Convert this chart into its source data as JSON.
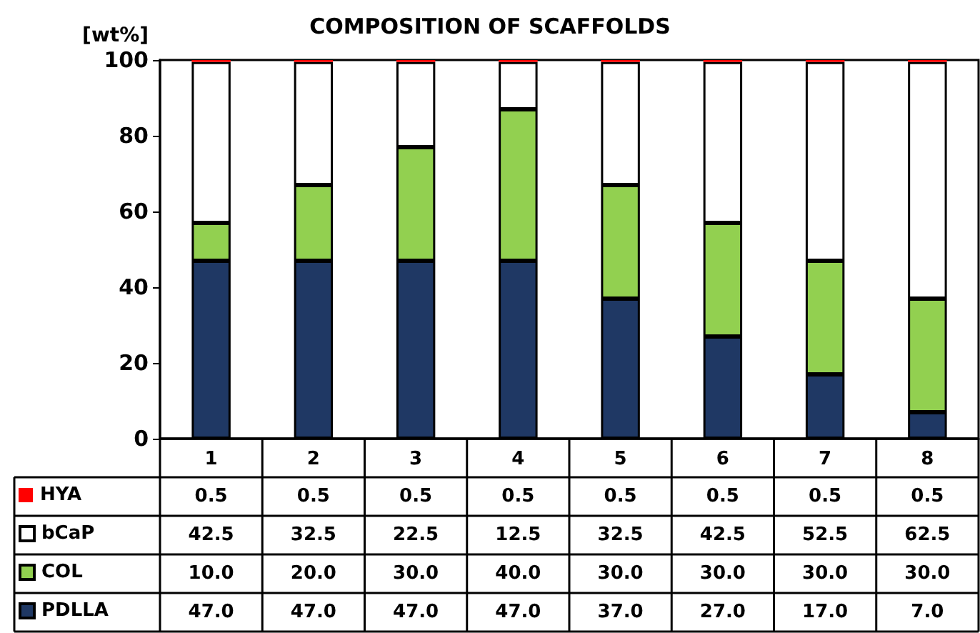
{
  "chart_data": {
    "type": "bar",
    "title": "COMPOSITION OF SCAFFOLDS",
    "ylabel": "[wt%]",
    "categories": [
      "1",
      "2",
      "3",
      "4",
      "5",
      "6",
      "7",
      "8"
    ],
    "stacked": true,
    "ylim": [
      0,
      100
    ],
    "yticks": [
      0,
      20,
      40,
      60,
      80,
      100
    ],
    "grid": false,
    "legend": "bottom left",
    "series": [
      {
        "name": "PDLLA",
        "color": "#1f3864",
        "values": [
          47,
          47,
          47,
          47,
          37,
          27,
          17,
          7
        ],
        "value_labels": [
          "47.0",
          "47.0",
          "47.0",
          "47.0",
          "37.0",
          "27.0",
          "17.0",
          "7.0"
        ]
      },
      {
        "name": "COL",
        "color": "#92d050",
        "values": [
          10,
          20,
          30,
          40,
          30,
          30,
          30,
          30
        ],
        "value_labels": [
          "10.0",
          "20.0",
          "30.0",
          "40.0",
          "30.0",
          "30.0",
          "30.0",
          "30.0"
        ]
      },
      {
        "name": "bCaP",
        "color": "#ffffff",
        "values": [
          42.5,
          32.5,
          22.5,
          12.5,
          32.5,
          42.5,
          52.5,
          62.5
        ],
        "value_labels": [
          "42.5",
          "32.5",
          "22.5",
          "12.5",
          "32.5",
          "42.5",
          "52.5",
          "62.5"
        ]
      },
      {
        "name": "HYA",
        "color": "#ff0000",
        "values": [
          0.5,
          0.5,
          0.5,
          0.5,
          0.5,
          0.5,
          0.5,
          0.5
        ],
        "value_labels": [
          "0.5",
          "0.5",
          "0.5",
          "0.5",
          "0.5",
          "0.5",
          "0.5",
          "0.5"
        ]
      }
    ]
  }
}
